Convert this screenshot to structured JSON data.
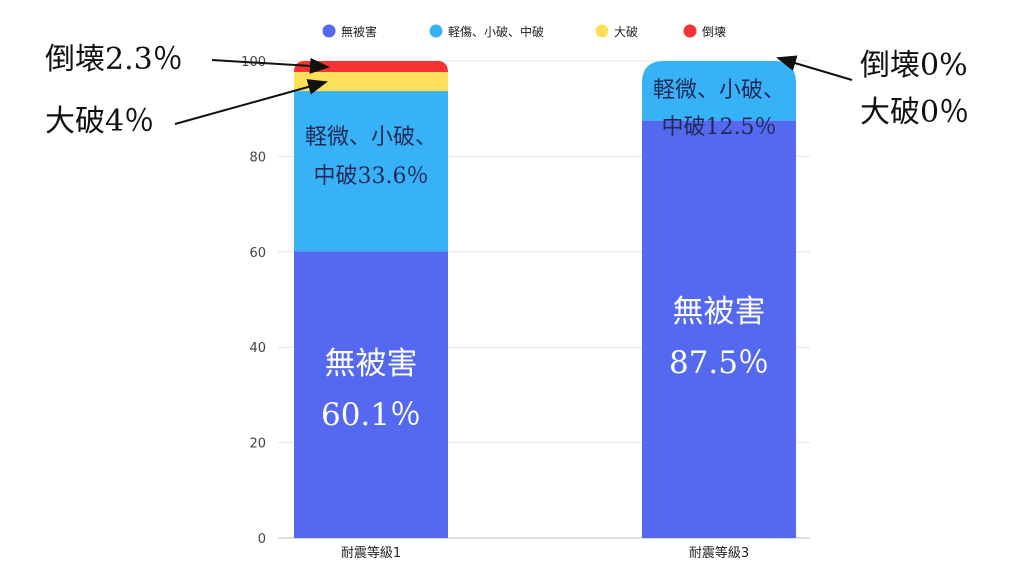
{
  "chart_data": {
    "type": "bar",
    "stacked": true,
    "categories": [
      "耐震等級1",
      "耐震等級3"
    ],
    "series": [
      {
        "name": "無被害",
        "color": "#5468f0",
        "values": [
          60.1,
          87.5
        ]
      },
      {
        "name": "軽傷、小破、中破",
        "color": "#38b2f7",
        "values": [
          33.6,
          12.5
        ]
      },
      {
        "name": "大破",
        "color": "#fde05a",
        "values": [
          4.0,
          0
        ]
      },
      {
        "name": "倒壊",
        "color": "#f53333",
        "values": [
          2.3,
          0
        ]
      }
    ],
    "ylim": [
      0,
      100
    ],
    "yticks": [
      "0",
      "20",
      "40",
      "60",
      "80",
      "100"
    ],
    "legend": "top",
    "grid": true,
    "segment_labels": [
      [
        "無被害",
        "60.1％"
      ],
      [
        "軽微、小破、",
        "中破33.6％"
      ],
      [
        "無被害",
        "87.5％"
      ],
      [
        "軽微、小破、",
        "中破12.5％"
      ]
    ],
    "callouts": [
      "倒壊2.3％",
      "大破4％",
      "倒壊0%",
      "大破0％"
    ]
  }
}
